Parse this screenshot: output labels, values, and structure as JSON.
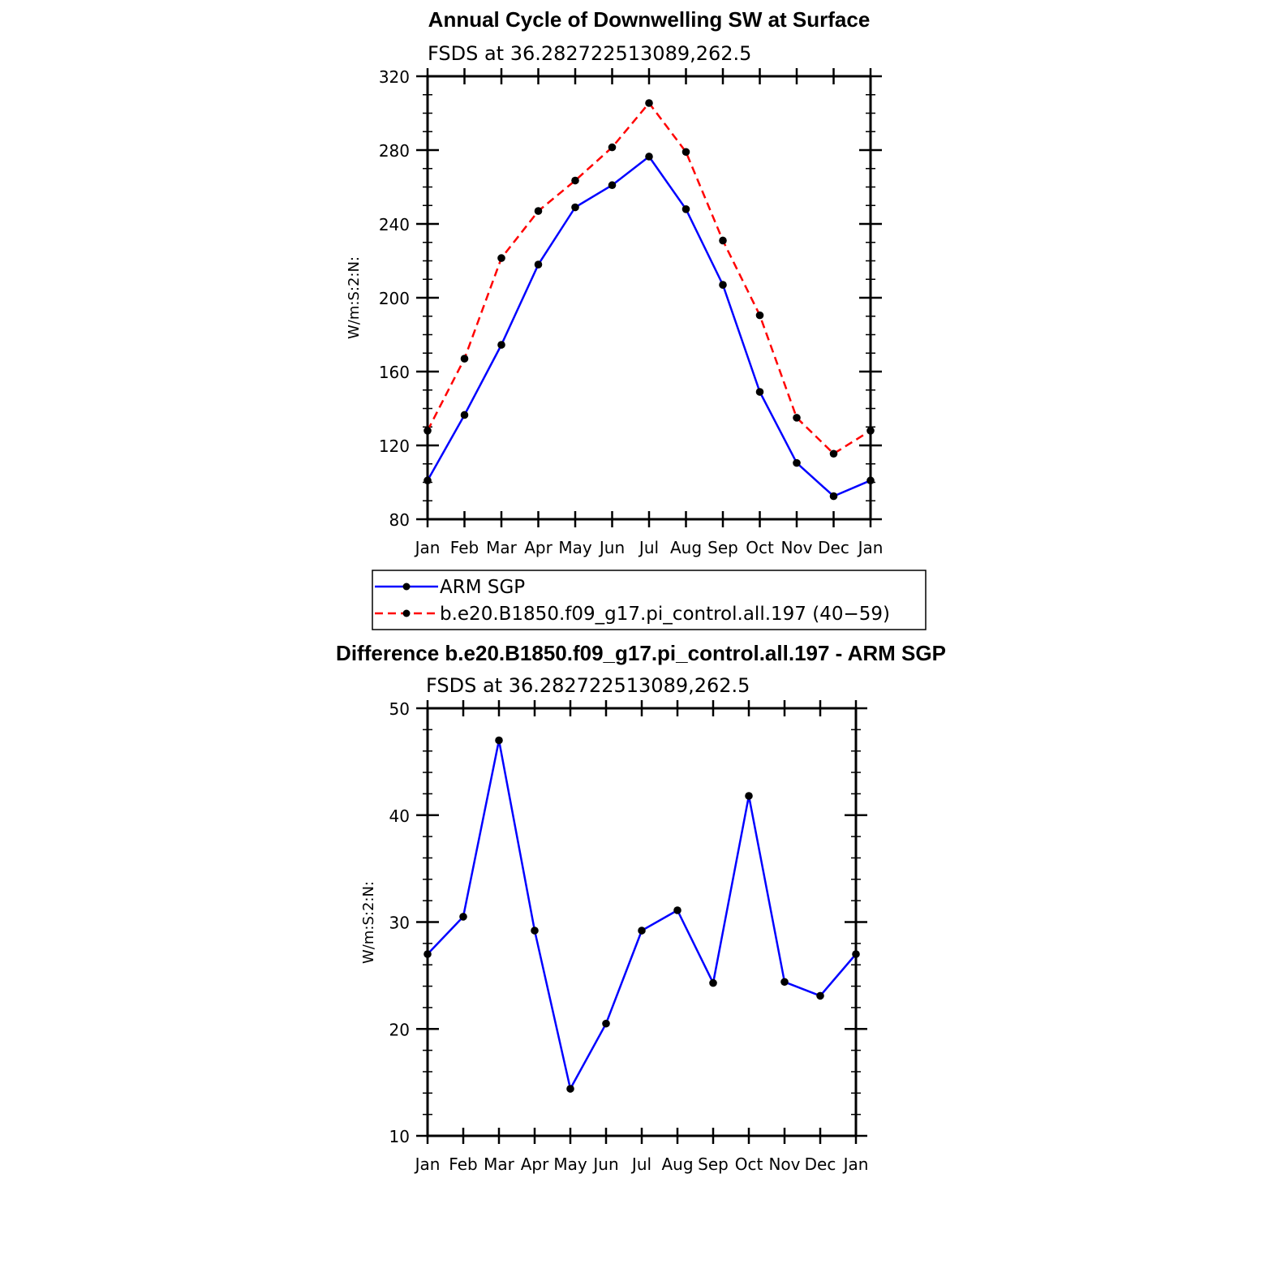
{
  "chart_data": [
    {
      "type": "line",
      "title": "Annual Cycle of Downwelling SW at Surface",
      "subtitle": "FSDS at 36.282722513089,262.5",
      "ylabel": "W/m:S:2:N:",
      "xlabel": "",
      "categories": [
        "Jan",
        "Feb",
        "Mar",
        "Apr",
        "May",
        "Jun",
        "Jul",
        "Aug",
        "Sep",
        "Oct",
        "Nov",
        "Dec",
        "Jan"
      ],
      "ylim": [
        80,
        320
      ],
      "yticks": [
        "80",
        "120",
        "160",
        "200",
        "240",
        "280",
        "320"
      ],
      "series": [
        {
          "name": "ARM SGP",
          "color": "#0000ff",
          "dash": "solid",
          "values": [
            101,
            136.5,
            174.5,
            218,
            249,
            261,
            276.5,
            248,
            207,
            149,
            110.5,
            92.5,
            101
          ]
        },
        {
          "name": "b.e20.B1850.f09_g17.pi_control.all.197 (40−59)",
          "color": "#ff0000",
          "dash": "dashed",
          "values": [
            128,
            167,
            221.5,
            247,
            263.5,
            281.5,
            305.5,
            279,
            231,
            190.5,
            135,
            115.5,
            128
          ]
        }
      ],
      "legend": "below"
    },
    {
      "type": "line",
      "title": "Difference b.e20.B1850.f09_g17.pi_control.all.197 - ARM SGP",
      "subtitle": "FSDS at 36.282722513089,262.5",
      "ylabel": "W/m:S:2:N:",
      "xlabel": "",
      "categories": [
        "Jan",
        "Feb",
        "Mar",
        "Apr",
        "May",
        "Jun",
        "Jul",
        "Aug",
        "Sep",
        "Oct",
        "Nov",
        "Dec",
        "Jan"
      ],
      "ylim": [
        10,
        50
      ],
      "yticks": [
        "10",
        "20",
        "30",
        "40",
        "50"
      ],
      "series": [
        {
          "color": "#0000ff",
          "dash": "solid",
          "values": [
            27,
            30.5,
            47,
            29.2,
            14.4,
            20.5,
            29.2,
            31.1,
            24.3,
            41.8,
            24.4,
            23.1,
            27
          ]
        }
      ]
    }
  ]
}
